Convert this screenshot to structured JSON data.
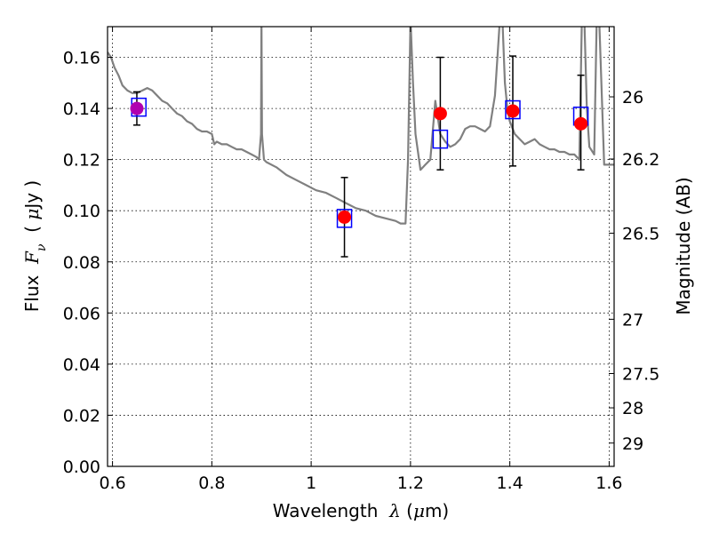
{
  "chart_data": {
    "type": "scatter",
    "title": "",
    "xlabel": {
      "prefix": "Wavelength  ",
      "symbol": "λ",
      "suffix": " (",
      "unit_symbol": "μ",
      "unit_rest": "m)"
    },
    "ylabel": {
      "prefix": "Flux  ",
      "symbol": "F",
      "subscript": "ν",
      "suffix": "  ( ",
      "unit_symbol": "μ",
      "unit_rest": "Jy )"
    },
    "ylabel_right": "Magnitude (AB)",
    "xlim": [
      0.59,
      1.61
    ],
    "ylim": [
      0.0,
      0.172
    ],
    "xticks": [
      0.6,
      0.8,
      1.0,
      1.2,
      1.4,
      1.6
    ],
    "xtick_labels": [
      "0.6",
      "0.8",
      "1",
      "1.2",
      "1.4",
      "1.6"
    ],
    "yticks": [
      0.0,
      0.02,
      0.04,
      0.06,
      0.08,
      0.1,
      0.12,
      0.14,
      0.16
    ],
    "ytick_labels": [
      "0.00",
      "0.02",
      "0.04",
      "0.06",
      "0.08",
      "0.10",
      "0.12",
      "0.14",
      "0.16"
    ],
    "right_ticks": [
      {
        "mag": 26,
        "label": "26"
      },
      {
        "mag": 26.2,
        "label": "26.2"
      },
      {
        "mag": 26.5,
        "label": "26.5"
      },
      {
        "mag": 27,
        "label": "27"
      },
      {
        "mag": 27.5,
        "label": "27.5"
      },
      {
        "mag": 28,
        "label": "28"
      },
      {
        "mag": 29,
        "label": "29"
      }
    ],
    "grid": true,
    "series": [
      {
        "kind": "line",
        "color": "#808080",
        "x": [
          0.59,
          0.597,
          0.604,
          0.612,
          0.62,
          0.63,
          0.64,
          0.65,
          0.66,
          0.67,
          0.68,
          0.69,
          0.7,
          0.71,
          0.72,
          0.73,
          0.74,
          0.75,
          0.76,
          0.77,
          0.78,
          0.79,
          0.8,
          0.805,
          0.81,
          0.82,
          0.83,
          0.84,
          0.85,
          0.86,
          0.87,
          0.88,
          0.89,
          0.895,
          0.899,
          0.9,
          0.901,
          0.905,
          0.91,
          0.93,
          0.95,
          0.97,
          0.99,
          1.01,
          1.03,
          1.05,
          1.07,
          1.09,
          1.11,
          1.13,
          1.15,
          1.17,
          1.18,
          1.19,
          1.195,
          1.2,
          1.205,
          1.21,
          1.22,
          1.23,
          1.24,
          1.25,
          1.26,
          1.27,
          1.28,
          1.29,
          1.3,
          1.31,
          1.32,
          1.33,
          1.34,
          1.35,
          1.36,
          1.37,
          1.38,
          1.385,
          1.39,
          1.395,
          1.4,
          1.41,
          1.42,
          1.43,
          1.44,
          1.45,
          1.46,
          1.47,
          1.48,
          1.49,
          1.5,
          1.51,
          1.52,
          1.53,
          1.535,
          1.54,
          1.545,
          1.55,
          1.555,
          1.56,
          1.57,
          1.575,
          1.58,
          1.59,
          1.6,
          1.61
        ],
        "y": [
          0.162,
          0.16,
          0.156,
          0.153,
          0.149,
          0.147,
          0.146,
          0.146,
          0.147,
          0.148,
          0.147,
          0.145,
          0.143,
          0.142,
          0.14,
          0.138,
          0.137,
          0.135,
          0.134,
          0.132,
          0.131,
          0.131,
          0.13,
          0.126,
          0.127,
          0.126,
          0.126,
          0.125,
          0.124,
          0.124,
          0.123,
          0.122,
          0.121,
          0.12,
          0.13,
          0.175,
          0.13,
          0.12,
          0.119,
          0.117,
          0.114,
          0.112,
          0.11,
          0.108,
          0.107,
          0.105,
          0.103,
          0.101,
          0.1,
          0.098,
          0.097,
          0.096,
          0.095,
          0.095,
          0.12,
          0.175,
          0.15,
          0.13,
          0.116,
          0.118,
          0.12,
          0.143,
          0.13,
          0.127,
          0.125,
          0.126,
          0.128,
          0.132,
          0.133,
          0.133,
          0.132,
          0.131,
          0.133,
          0.145,
          0.175,
          0.175,
          0.15,
          0.14,
          0.135,
          0.13,
          0.128,
          0.126,
          0.127,
          0.128,
          0.126,
          0.125,
          0.124,
          0.124,
          0.123,
          0.123,
          0.122,
          0.122,
          0.121,
          0.12,
          0.175,
          0.175,
          0.14,
          0.125,
          0.122,
          0.175,
          0.175,
          0.118,
          0.118,
          0.118
        ]
      },
      {
        "kind": "errorbars",
        "color": "#000000",
        "x": [
          0.649,
          1.067,
          1.26,
          1.406,
          1.543
        ],
        "y": [
          0.14,
          0.0975,
          0.138,
          0.139,
          0.134
        ],
        "yerr_low": [
          0.0065,
          0.0155,
          0.022,
          0.0215,
          0.018
        ],
        "yerr_high": [
          0.0065,
          0.0155,
          0.022,
          0.0215,
          0.019
        ]
      },
      {
        "kind": "squares",
        "color": "#0000ff",
        "x": [
          0.653,
          1.067,
          1.26,
          1.406,
          1.543
        ],
        "y": [
          0.1405,
          0.097,
          0.128,
          0.1395,
          0.137
        ]
      },
      {
        "kind": "circles",
        "x": [
          0.649,
          1.067,
          1.26,
          1.406,
          1.543
        ],
        "y": [
          0.14,
          0.0975,
          0.138,
          0.139,
          0.134
        ],
        "colors": [
          "#b000b0",
          "#ff0000",
          "#ff0000",
          "#ff0000",
          "#ff0000"
        ]
      }
    ]
  }
}
